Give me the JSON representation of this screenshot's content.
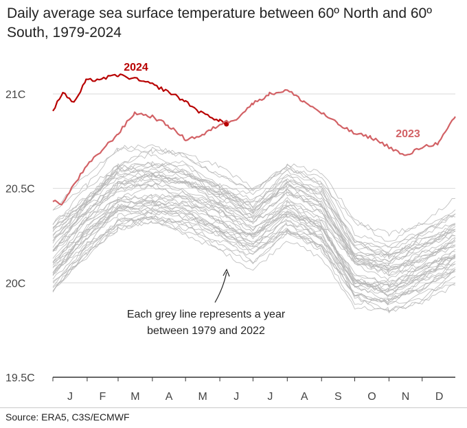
{
  "title": "Daily average sea surface temperature between 60º North and 60º South, 1979-2024",
  "source": "Source: ERA5, C3S/ECMWF",
  "colors": {
    "y2024": "#b80000",
    "y2023": "#d26165",
    "grey": "#b5b5b5",
    "grid": "#d9d9d9"
  },
  "chart_data": {
    "type": "line",
    "title": "Daily average sea surface temperature between 60º North and 60º South, 1979-2024",
    "xlabel": "",
    "ylabel": "",
    "ylim": [
      19.5,
      21.1
    ],
    "y_ticks": [
      {
        "value": 21.0,
        "label": "21C"
      },
      {
        "value": 20.5,
        "label": "20.5C"
      },
      {
        "value": 20.0,
        "label": "20C"
      },
      {
        "value": 19.5,
        "label": "19.5C"
      }
    ],
    "x_ticks": [
      "J",
      "F",
      "M",
      "A",
      "M",
      "J",
      "J",
      "A",
      "S",
      "O",
      "N",
      "D"
    ],
    "grid": true,
    "annotation": "Each grey line represents a year between 1979 and 2022",
    "annotation_lines": [
      "Each grey line represents a year",
      "between 1979 and 2022"
    ],
    "series": [
      {
        "name": "2024",
        "label": "2024",
        "highlight": true,
        "end_marker": true,
        "x": [
          1,
          10,
          20,
          31,
          45,
          60,
          75,
          91,
          106,
          121,
          135,
          152,
          158
        ],
        "values": [
          20.91,
          21.01,
          20.95,
          21.07,
          21.08,
          21.1,
          21.08,
          21.05,
          21.01,
          20.96,
          20.9,
          20.86,
          20.84
        ]
      },
      {
        "name": "2023",
        "label": "2023",
        "highlight": true,
        "x": [
          1,
          10,
          20,
          32,
          45,
          60,
          75,
          91,
          106,
          121,
          136,
          152,
          167,
          182,
          197,
          213,
          228,
          244,
          259,
          274,
          289,
          305,
          320,
          335,
          350,
          365
        ],
        "values": [
          20.43,
          20.42,
          20.52,
          20.62,
          20.7,
          20.79,
          20.9,
          20.88,
          20.83,
          20.76,
          20.78,
          20.84,
          20.87,
          20.95,
          21.0,
          21.02,
          20.96,
          20.9,
          20.84,
          20.79,
          20.77,
          20.72,
          20.67,
          20.72,
          20.74,
          20.88
        ]
      }
    ],
    "background_years": "1979-2022"
  }
}
